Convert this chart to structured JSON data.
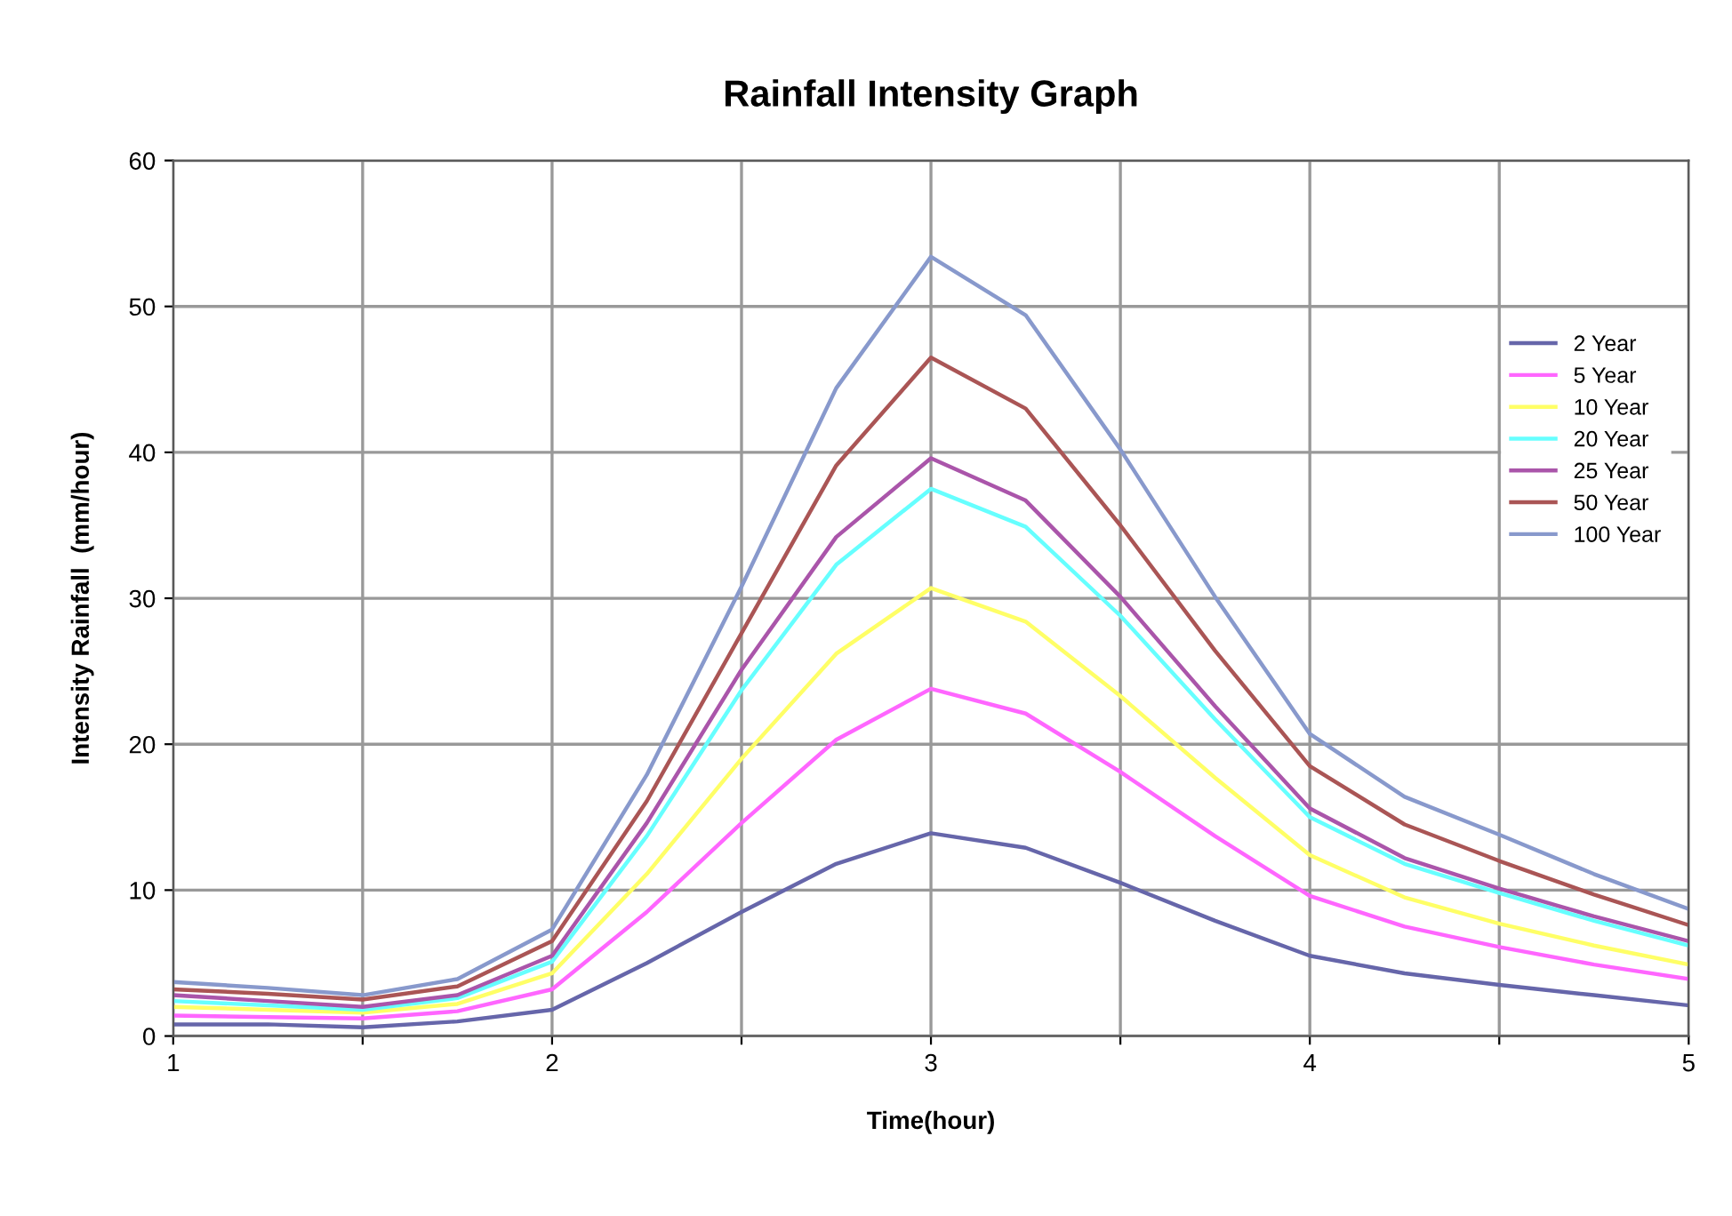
{
  "chart_data": {
    "type": "line",
    "title": "Rainfall Intensity Graph",
    "xlabel": "Time(hour)",
    "ylabel": "Intensity Rainfall  (mm/hour)",
    "x": [
      1,
      1.25,
      1.5,
      1.75,
      2,
      2.25,
      2.5,
      2.75,
      3,
      3.25,
      3.5,
      3.75,
      4,
      4.25,
      4.5,
      4.75,
      5
    ],
    "series": [
      {
        "name": "2 Year",
        "color": "#6666aa",
        "values": [
          0.8,
          0.8,
          0.6,
          1.0,
          1.8,
          5.0,
          8.5,
          11.8,
          13.9,
          12.9,
          10.5,
          7.9,
          5.5,
          4.3,
          3.5,
          2.8,
          2.1
        ]
      },
      {
        "name": "5 Year",
        "color": "#ff66ff",
        "values": [
          1.4,
          1.3,
          1.2,
          1.7,
          3.2,
          8.5,
          14.6,
          20.3,
          23.8,
          22.1,
          18.1,
          13.7,
          9.6,
          7.5,
          6.1,
          4.9,
          3.9
        ]
      },
      {
        "name": "10 Year",
        "color": "#ffff66",
        "values": [
          2.0,
          1.8,
          1.6,
          2.2,
          4.3,
          11.1,
          19.0,
          26.2,
          30.7,
          28.4,
          23.3,
          17.7,
          12.4,
          9.5,
          7.7,
          6.2,
          4.9
        ]
      },
      {
        "name": "20 Year",
        "color": "#66ffff",
        "values": [
          2.4,
          2.1,
          1.8,
          2.6,
          5.1,
          13.7,
          23.7,
          32.3,
          37.5,
          34.9,
          28.8,
          21.7,
          15.0,
          11.8,
          9.8,
          7.9,
          6.2
        ]
      },
      {
        "name": "25 Year",
        "color": "#aa55aa",
        "values": [
          2.8,
          2.4,
          2.0,
          2.8,
          5.5,
          14.6,
          25.1,
          34.2,
          39.6,
          36.7,
          30.1,
          22.6,
          15.6,
          12.2,
          10.1,
          8.2,
          6.5
        ]
      },
      {
        "name": "50 Year",
        "color": "#aa5555",
        "values": [
          3.2,
          2.9,
          2.5,
          3.4,
          6.5,
          16.1,
          27.6,
          39.1,
          46.5,
          43.0,
          35.0,
          26.4,
          18.5,
          14.5,
          12.0,
          9.7,
          7.6
        ]
      },
      {
        "name": "100 Year",
        "color": "#8899cc",
        "values": [
          3.7,
          3.3,
          2.8,
          3.9,
          7.3,
          17.9,
          30.8,
          44.4,
          53.4,
          49.4,
          40.2,
          30.1,
          20.7,
          16.4,
          13.8,
          11.1,
          8.7
        ]
      }
    ],
    "xlim": [
      1,
      5
    ],
    "xticks": [
      1,
      {
        "value": 1.5,
        "label": null
      },
      2,
      {
        "value": 2.5,
        "label": null
      },
      3,
      {
        "value": 3.5,
        "label": null
      },
      4,
      {
        "value": 4.5,
        "label": null
      },
      5
    ],
    "ylim": [
      0,
      60
    ],
    "yticks": [
      0,
      10,
      20,
      30,
      40,
      50,
      60
    ],
    "grid": true,
    "legend": "right",
    "marker": "none",
    "line_style": "solid"
  }
}
